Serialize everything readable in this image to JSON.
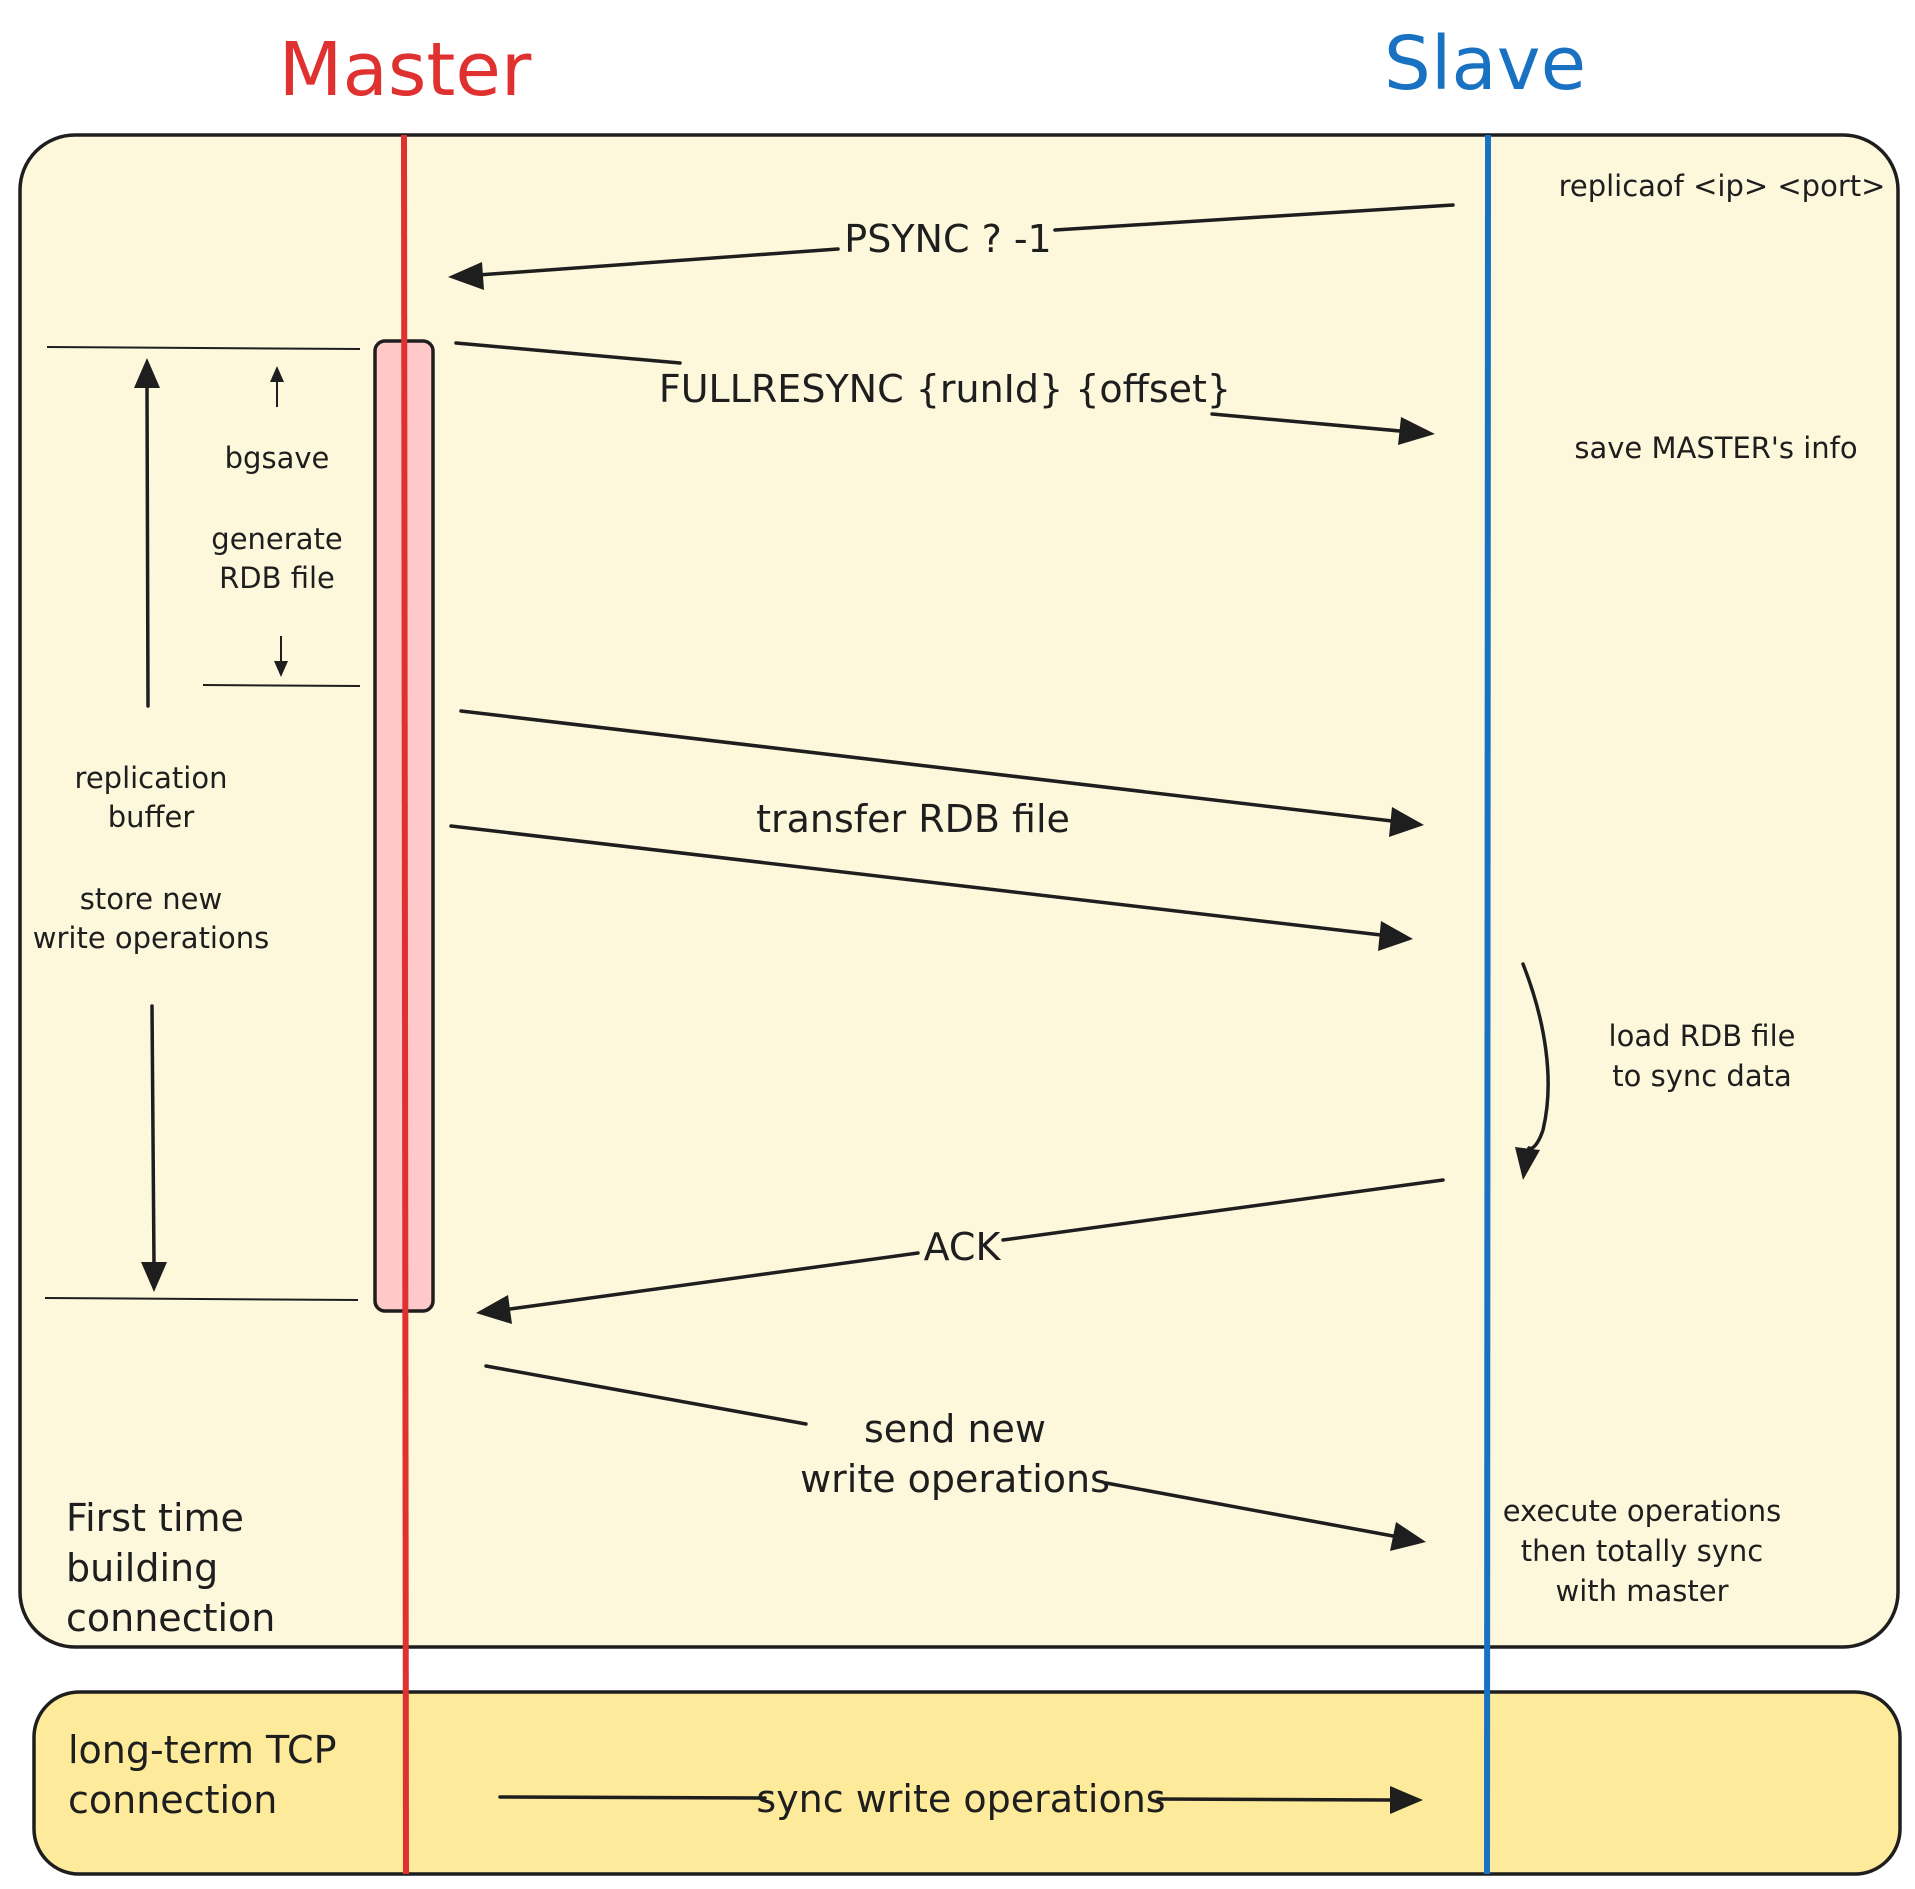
{
  "titles": {
    "master": "Master",
    "slave": "Slave"
  },
  "colors": {
    "master_line": "#e03131",
    "slave_line": "#1971c2",
    "phase1_fill": "#fdf7dc",
    "phase2_fill": "#fdea9a",
    "buffer_fill": "#ffc9c9"
  },
  "messages": {
    "psync": "PSYNC ? -1",
    "fullresync": "FULLRESYNC {runId} {offset}",
    "transfer": "transfer RDB file",
    "ack": "ACK",
    "send_new_1": "send new",
    "send_new_2": "write operations",
    "sync_write": "sync write operations"
  },
  "slave_notes": {
    "replicaof": "replicaof <ip> <port>",
    "save_info": "save MASTER's info",
    "load_1": "load RDB file",
    "load_2": "to sync data",
    "exec_1": "execute operations",
    "exec_2": "then totally sync",
    "exec_3": "with master"
  },
  "master_notes": {
    "bgsave": "bgsave",
    "generate_1": "generate",
    "generate_2": "RDB file",
    "repl_1": "replication",
    "repl_2": "buffer",
    "store_1": "store new",
    "store_2": "write operations"
  },
  "phases": {
    "first_1": "First time",
    "first_2": "building",
    "first_3": "connection",
    "long_1": "long-term TCP",
    "long_2": "connection"
  }
}
